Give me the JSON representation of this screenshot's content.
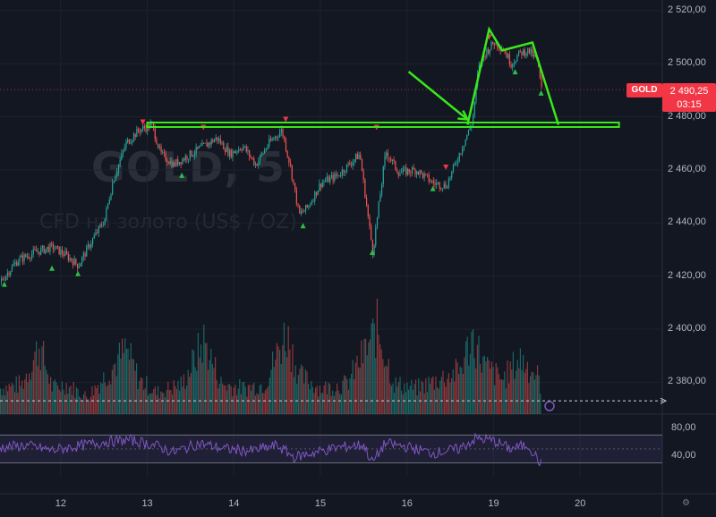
{
  "watermark": {
    "ticker": "GOLD, 5",
    "description": "CFD на золото (US$ / OZ)"
  },
  "symbol": {
    "name": "GOLD",
    "price": "2 490,25",
    "countdown": "03:15"
  },
  "colors": {
    "background": "#131722",
    "grid": "#1e222d",
    "up": "#26a69a",
    "down": "#ef5350",
    "drawing": "#39e81b",
    "rsi": "#7e57c2",
    "badge": "#f23645"
  },
  "icons": {
    "settings": "gear-icon"
  },
  "chart_data": [
    {
      "type": "line",
      "title": "GOLD, 5",
      "subtitle": "CFD на золото (US$ / OZ)",
      "y_ticks": [
        "2 520,00",
        "2 500,00",
        "2 480,00",
        "2 460,00",
        "2 440,00",
        "2 420,00",
        "2 400,00",
        "2 380,00"
      ],
      "y_tick_values": [
        2520,
        2500,
        2480,
        2460,
        2440,
        2420,
        2400,
        2380
      ],
      "ylim": [
        2368,
        2524
      ],
      "x_ticks": [
        "12",
        "13",
        "14",
        "15",
        "16",
        "19",
        "20"
      ],
      "x_tick_values": [
        12,
        13,
        14,
        15,
        16,
        17,
        18
      ],
      "xlim": [
        11.3,
        18.95
      ],
      "last_price": 2490.25,
      "price_path": [
        [
          11.3,
          2418
        ],
        [
          11.5,
          2426
        ],
        [
          11.7,
          2429
        ],
        [
          11.9,
          2431
        ],
        [
          12.05,
          2428
        ],
        [
          12.2,
          2424
        ],
        [
          12.35,
          2433
        ],
        [
          12.5,
          2441
        ],
        [
          12.6,
          2456
        ],
        [
          12.75,
          2470
        ],
        [
          12.9,
          2475
        ],
        [
          13.05,
          2477
        ],
        [
          13.15,
          2466
        ],
        [
          13.3,
          2462
        ],
        [
          13.5,
          2466
        ],
        [
          13.65,
          2469
        ],
        [
          13.8,
          2472
        ],
        [
          13.95,
          2466
        ],
        [
          14.1,
          2469
        ],
        [
          14.25,
          2462
        ],
        [
          14.4,
          2470
        ],
        [
          14.55,
          2475
        ],
        [
          14.65,
          2461
        ],
        [
          14.75,
          2443
        ],
        [
          14.85,
          2446
        ],
        [
          15.0,
          2455
        ],
        [
          15.2,
          2458
        ],
        [
          15.45,
          2466
        ],
        [
          15.6,
          2429
        ],
        [
          15.75,
          2467
        ],
        [
          15.9,
          2459
        ],
        [
          16.1,
          2460
        ],
        [
          16.3,
          2455
        ],
        [
          16.45,
          2454
        ],
        [
          16.6,
          2466
        ],
        [
          16.75,
          2478
        ],
        [
          16.82,
          2498
        ],
        [
          16.9,
          2504
        ],
        [
          17.0,
          2508
        ],
        [
          17.1,
          2506
        ],
        [
          17.2,
          2500
        ],
        [
          17.3,
          2504
        ],
        [
          17.4,
          2505
        ],
        [
          17.5,
          2501
        ],
        [
          17.55,
          2490
        ]
      ],
      "signals": [
        {
          "x": 11.35,
          "y": 2417,
          "dir": "up"
        },
        {
          "x": 11.9,
          "y": 2423,
          "dir": "up"
        },
        {
          "x": 12.2,
          "y": 2421,
          "dir": "up"
        },
        {
          "x": 12.95,
          "y": 2478,
          "dir": "down"
        },
        {
          "x": 13.4,
          "y": 2458,
          "dir": "up"
        },
        {
          "x": 13.65,
          "y": 2476,
          "dir": "down"
        },
        {
          "x": 14.6,
          "y": 2479,
          "dir": "down"
        },
        {
          "x": 14.8,
          "y": 2439,
          "dir": "up"
        },
        {
          "x": 15.6,
          "y": 2429,
          "dir": "up"
        },
        {
          "x": 15.65,
          "y": 2476,
          "dir": "down"
        },
        {
          "x": 16.3,
          "y": 2453,
          "dir": "up"
        },
        {
          "x": 16.45,
          "y": 2461,
          "dir": "down"
        },
        {
          "x": 16.95,
          "y": 2510,
          "dir": "down"
        },
        {
          "x": 17.25,
          "y": 2497,
          "dir": "up"
        },
        {
          "x": 17.55,
          "y": 2489,
          "dir": "up"
        }
      ],
      "annotations": {
        "support_line": {
          "y": 2477,
          "x_from": 13.0,
          "x_to": 18.45
        },
        "arrow": {
          "from": [
            16.02,
            2497
          ],
          "to": [
            16.7,
            2479
          ]
        },
        "pattern": [
          [
            16.7,
            2477
          ],
          [
            16.95,
            2513
          ],
          [
            17.1,
            2505
          ],
          [
            17.45,
            2508
          ],
          [
            17.75,
            2477
          ]
        ]
      }
    },
    {
      "type": "bar",
      "name": "volume",
      "level_line": 2373,
      "profile": [
        [
          11.3,
          0.3
        ],
        [
          11.55,
          0.35
        ],
        [
          11.75,
          0.8
        ],
        [
          11.9,
          0.3
        ],
        [
          12.05,
          0.35
        ],
        [
          12.3,
          0.2
        ],
        [
          12.6,
          0.55
        ],
        [
          12.75,
          0.75
        ],
        [
          12.9,
          0.4
        ],
        [
          13.1,
          0.25
        ],
        [
          13.4,
          0.35
        ],
        [
          13.65,
          0.85
        ],
        [
          13.85,
          0.35
        ],
        [
          14.1,
          0.3
        ],
        [
          14.35,
          0.35
        ],
        [
          14.6,
          0.95
        ],
        [
          14.75,
          0.45
        ],
        [
          15.0,
          0.3
        ],
        [
          15.3,
          0.35
        ],
        [
          15.55,
          0.8
        ],
        [
          15.65,
          1.0
        ],
        [
          15.85,
          0.35
        ],
        [
          16.1,
          0.3
        ],
        [
          16.35,
          0.4
        ],
        [
          16.6,
          0.5
        ],
        [
          16.75,
          0.9
        ],
        [
          16.9,
          0.55
        ],
        [
          17.1,
          0.4
        ],
        [
          17.3,
          0.65
        ],
        [
          17.5,
          0.45
        ],
        [
          17.55,
          0.3
        ]
      ]
    },
    {
      "type": "line",
      "name": "RSI",
      "y_ticks": [
        "80,00",
        "40,00"
      ],
      "y_tick_values": [
        80,
        40
      ],
      "ylim": [
        10,
        100
      ],
      "band": [
        30,
        70
      ],
      "mid_line": 50,
      "values": [
        [
          11.3,
          52
        ],
        [
          11.6,
          55
        ],
        [
          11.9,
          48
        ],
        [
          12.2,
          54
        ],
        [
          12.5,
          60
        ],
        [
          12.8,
          63
        ],
        [
          13.1,
          55
        ],
        [
          13.3,
          45
        ],
        [
          13.6,
          58
        ],
        [
          13.9,
          50
        ],
        [
          14.2,
          47
        ],
        [
          14.5,
          55
        ],
        [
          14.7,
          38
        ],
        [
          14.9,
          44
        ],
        [
          15.2,
          52
        ],
        [
          15.5,
          56
        ],
        [
          15.6,
          30
        ],
        [
          15.75,
          58
        ],
        [
          16.0,
          53
        ],
        [
          16.3,
          44
        ],
        [
          16.6,
          50
        ],
        [
          16.8,
          65
        ],
        [
          17.0,
          62
        ],
        [
          17.2,
          50
        ],
        [
          17.4,
          56
        ],
        [
          17.55,
          28
        ]
      ]
    }
  ]
}
